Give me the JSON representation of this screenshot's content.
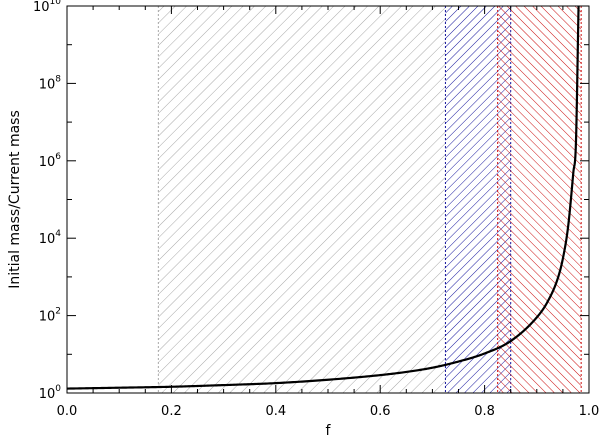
{
  "chart_data": {
    "type": "line",
    "xlabel": "f",
    "ylabel": "Initial mass/Current mass",
    "xlim": [
      0.0,
      1.0
    ],
    "ylim": [
      1,
      10000000000
    ],
    "yscale": "log",
    "grid": false,
    "x_ticks": [
      {
        "value": 0.0,
        "label": "0.0"
      },
      {
        "value": 0.2,
        "label": "0.2"
      },
      {
        "value": 0.4,
        "label": "0.4"
      },
      {
        "value": 0.6,
        "label": "0.6"
      },
      {
        "value": 0.8,
        "label": "0.8"
      },
      {
        "value": 1.0,
        "label": "1.0"
      }
    ],
    "y_ticks": [
      {
        "value": 1,
        "base": "10",
        "exp": "0"
      },
      {
        "value": 100,
        "base": "10",
        "exp": "2"
      },
      {
        "value": 10000,
        "base": "10",
        "exp": "4"
      },
      {
        "value": 1000000,
        "base": "10",
        "exp": "6"
      },
      {
        "value": 100000000,
        "base": "10",
        "exp": "8"
      },
      {
        "value": 10000000000,
        "base": "10",
        "exp": "10"
      }
    ],
    "shaded_regions": [
      {
        "x_start": 0.175,
        "x_end": 0.725,
        "color": "#a8a8a8",
        "hatch": "forward"
      },
      {
        "x_start": 0.725,
        "x_end": 0.85,
        "color": "#1a1aa0",
        "hatch": "forward"
      },
      {
        "x_start": 0.825,
        "x_end": 0.985,
        "color": "#cc1111",
        "hatch": "backward"
      }
    ],
    "series": [
      {
        "color": "#000000",
        "x": [
          0.0,
          0.1,
          0.2,
          0.3,
          0.4,
          0.5,
          0.6,
          0.65,
          0.7,
          0.75,
          0.8,
          0.85,
          0.9,
          0.92,
          0.94,
          0.95,
          0.96,
          0.97,
          0.975,
          0.98
        ],
        "y": [
          1.3,
          1.37,
          1.45,
          1.6,
          1.8,
          2.2,
          2.9,
          3.5,
          4.5,
          6.5,
          10.5,
          22,
          90,
          220,
          900,
          3000,
          20000,
          500000,
          3000000,
          10000000000
        ]
      }
    ]
  }
}
